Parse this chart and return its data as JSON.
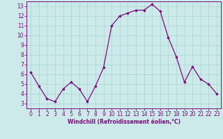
{
  "x": [
    0,
    1,
    2,
    3,
    4,
    5,
    6,
    7,
    8,
    9,
    10,
    11,
    12,
    13,
    14,
    15,
    16,
    17,
    18,
    19,
    20,
    21,
    22,
    23
  ],
  "y": [
    6.2,
    4.8,
    3.5,
    3.2,
    4.5,
    5.2,
    4.5,
    3.2,
    4.8,
    6.7,
    11.0,
    12.0,
    12.3,
    12.6,
    12.6,
    13.2,
    12.5,
    9.8,
    7.8,
    5.2,
    6.8,
    5.5,
    5.0,
    4.0
  ],
  "line_color": "#7b0a7b",
  "marker": "D",
  "markersize": 1.8,
  "linewidth": 0.9,
  "bg_color": "#cdeaea",
  "grid_color": "#a8d4d4",
  "xlabel": "Windchill (Refroidissement éolien,°C)",
  "xlabel_fontsize": 5.5,
  "tick_fontsize": 5.5,
  "xlim": [
    -0.5,
    23.5
  ],
  "ylim": [
    2.5,
    13.5
  ],
  "yticks": [
    3,
    4,
    5,
    6,
    7,
    8,
    9,
    10,
    11,
    12,
    13
  ],
  "xticks": [
    0,
    1,
    2,
    3,
    4,
    5,
    6,
    7,
    8,
    9,
    10,
    11,
    12,
    13,
    14,
    15,
    16,
    17,
    18,
    19,
    20,
    21,
    22,
    23
  ]
}
